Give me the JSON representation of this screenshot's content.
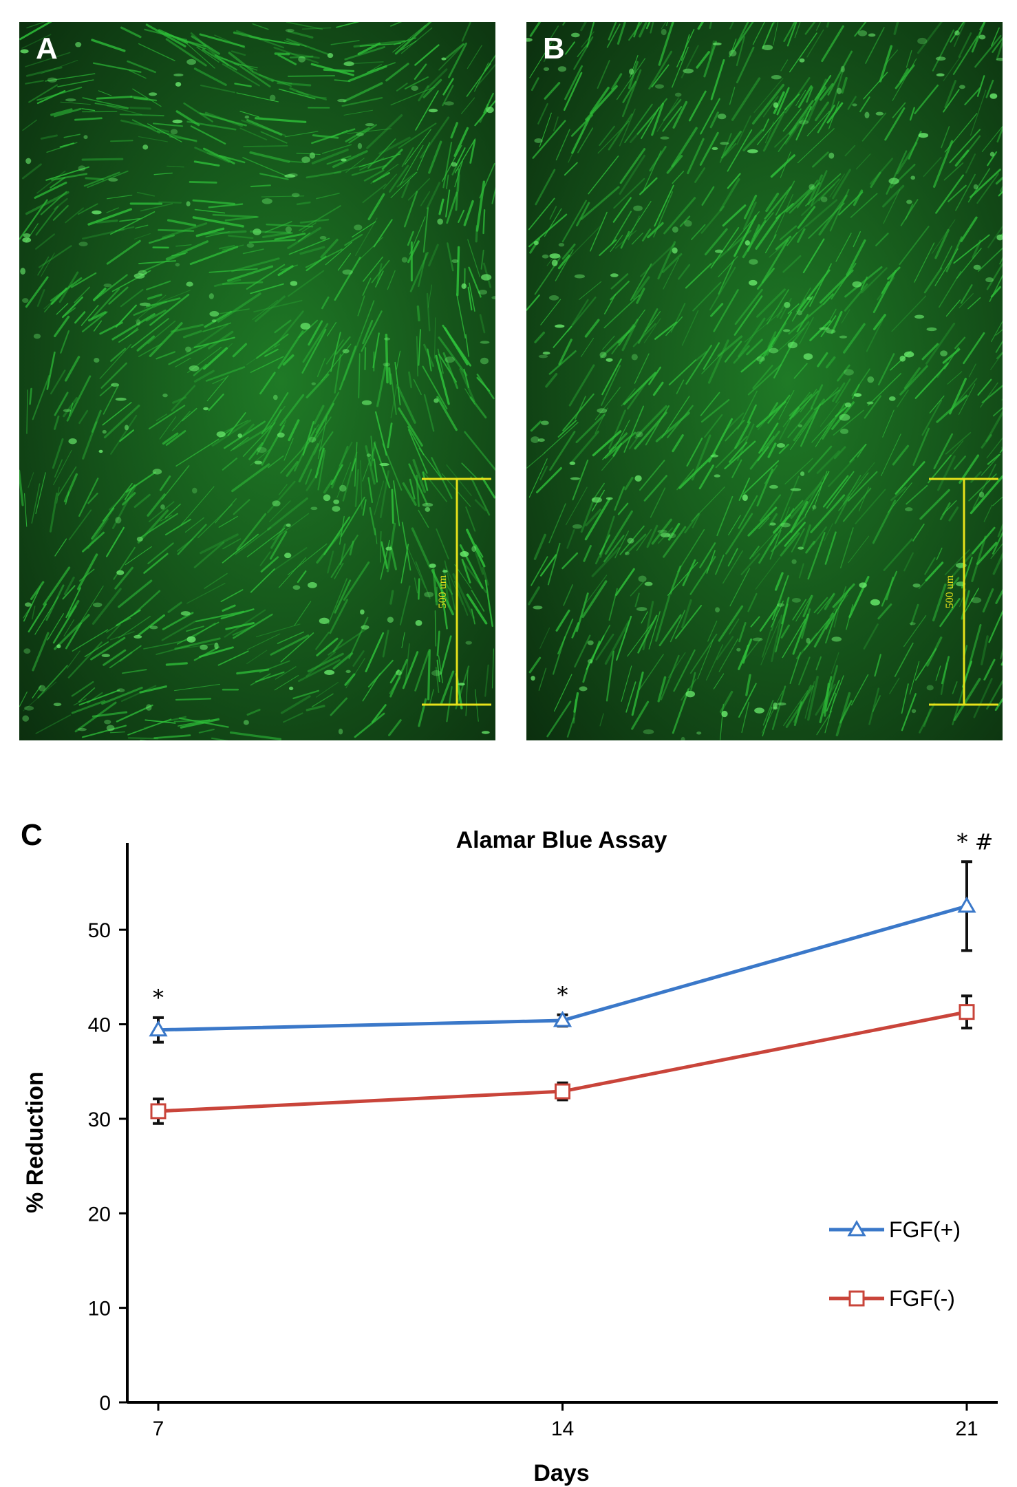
{
  "panels": {
    "a": {
      "letter": "A",
      "scale_label": "500 um"
    },
    "b": {
      "letter": "B",
      "scale_label": "500 um"
    }
  },
  "colors": {
    "fluorescence": "#2fc23a",
    "background_dark": "#0b2e0e",
    "scale_bar": "#e8e21a",
    "fgf_plus": "#3a78c9",
    "fgf_minus": "#c9443a",
    "error_bar": "#111111"
  },
  "chart_data": {
    "type": "line",
    "panel_letter": "C",
    "title": "Alamar Blue Assay",
    "xlabel": "Days",
    "ylabel": "% Reduction",
    "x": [
      7,
      14,
      21
    ],
    "ylim": [
      0,
      57
    ],
    "yticks": [
      0,
      10,
      20,
      30,
      40,
      50
    ],
    "legend_position": "right",
    "series": [
      {
        "name": "FGF(+)",
        "marker": "triangle",
        "values": [
          39.4,
          40.4,
          52.5
        ],
        "errors": [
          1.3,
          0.6,
          4.7
        ]
      },
      {
        "name": "FGF(-)",
        "marker": "square",
        "values": [
          30.8,
          32.9,
          41.3
        ],
        "errors": [
          1.3,
          0.9,
          1.7
        ]
      }
    ],
    "annotations": [
      {
        "x": 7,
        "text": "*"
      },
      {
        "x": 14,
        "text": "*"
      },
      {
        "x": 21,
        "text": "* #"
      }
    ]
  }
}
